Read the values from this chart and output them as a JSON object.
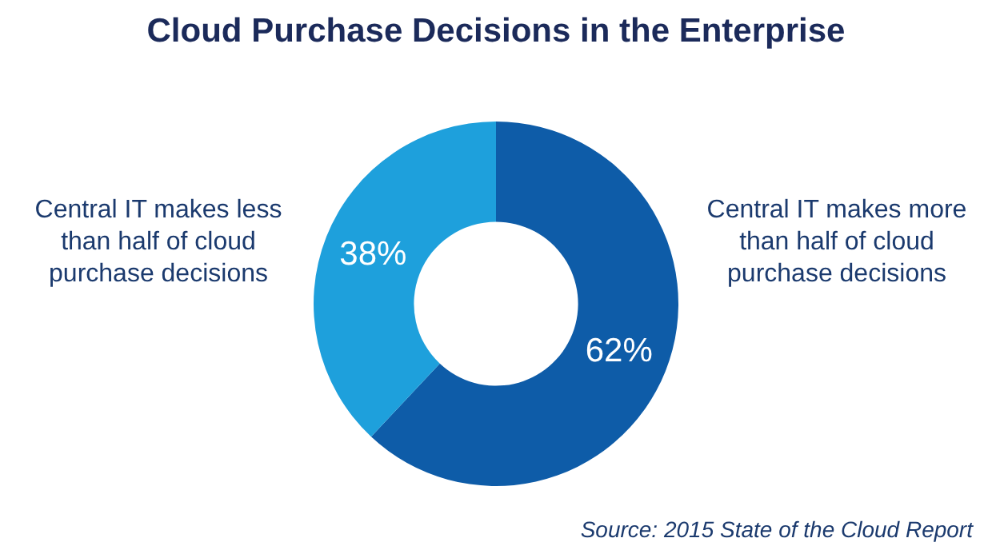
{
  "chart_data": {
    "type": "donut",
    "title": "Cloud Purchase Decisions in the Enterprise",
    "categories": [
      "Central IT makes more than half of cloud purchase decisions",
      "Central IT makes less than half of cloud purchase decisions"
    ],
    "values": [
      62,
      38
    ],
    "colors": [
      "#0e5ca8",
      "#1ea0dc"
    ],
    "value_labels": [
      "62%",
      "38%"
    ],
    "legend": false,
    "annotations": [
      "Source: 2015 State of the Cloud Report"
    ]
  }
}
